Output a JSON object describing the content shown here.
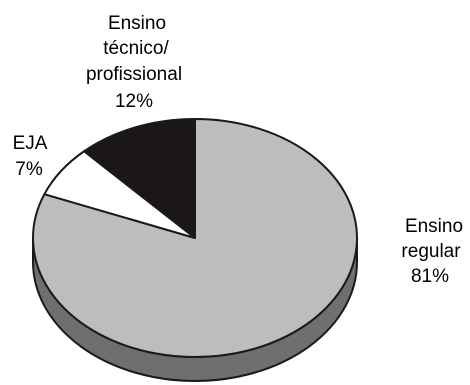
{
  "chart_data": {
    "type": "pie",
    "style": "3d",
    "slices": [
      {
        "label_lines": [
          "Ensino",
          "regular"
        ],
        "value_text": "81%",
        "value": 81,
        "color": "#bdbdbd",
        "side_color": "#6f6f6f"
      },
      {
        "label_lines": [
          "EJA"
        ],
        "value_text": "7%",
        "value": 7,
        "color": "#ffffff",
        "side_color": "#ffffff"
      },
      {
        "label_lines": [
          "Ensino",
          "técnico/",
          "profissional"
        ],
        "value_text": "12%",
        "value": 12,
        "color": "#1b1718",
        "side_color": "#1b1718"
      }
    ]
  }
}
